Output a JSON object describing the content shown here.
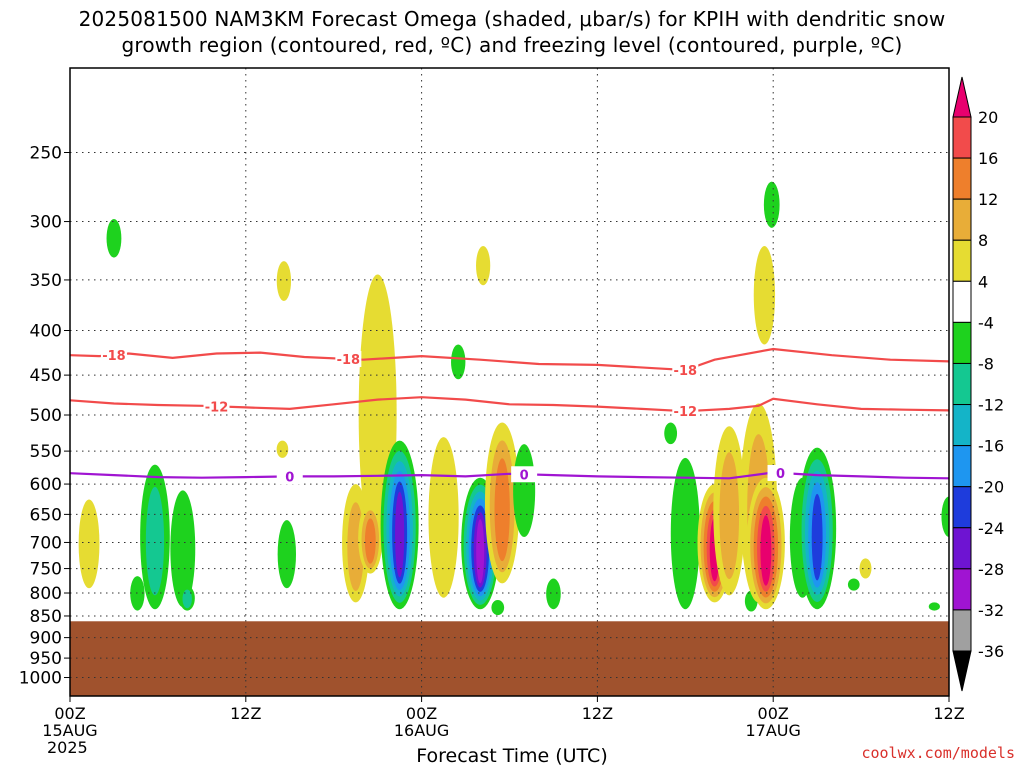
{
  "title_line1": "2025081500 NAM3KM Forecast Omega (shaded, μbar/s) for KPIH with dendritic snow",
  "title_line2": "growth region (contoured, red, ºC) and freezing level (contoured, purple, ºC)",
  "credit": "coolwx.com/models",
  "chart_data": {
    "type": "heatmap",
    "title": "2025081500 NAM3KM Forecast Omega (shaded, μbar/s) for KPIH with dendritic snow growth region (contoured, red, ºC) and freezing level (contoured, purple, ºC)",
    "xlabel": "Forecast Time (UTC)",
    "ylabel": "",
    "x_unit": "forecast hour",
    "xlim": [
      0,
      60
    ],
    "ylim_hPa": [
      1050,
      200
    ],
    "y_scale": "log-pressure",
    "x_ticks": [
      {
        "hour": 0,
        "label": "00Z",
        "date": "15AUG",
        "year": "2025"
      },
      {
        "hour": 12,
        "label": "12Z"
      },
      {
        "hour": 24,
        "label": "00Z",
        "date": "16AUG"
      },
      {
        "hour": 36,
        "label": "12Z"
      },
      {
        "hour": 48,
        "label": "00Z",
        "date": "17AUG"
      },
      {
        "hour": 60,
        "label": "12Z"
      }
    ],
    "y_ticks": [
      250,
      300,
      350,
      400,
      450,
      500,
      550,
      600,
      650,
      700,
      750,
      800,
      850,
      900,
      950,
      1000
    ],
    "grid": true,
    "colorbar": {
      "ticks": [
        20,
        16,
        12,
        8,
        4,
        -4,
        -8,
        -12,
        -16,
        -20,
        -24,
        -28,
        -32,
        -36
      ],
      "bands": [
        {
          "from": 20,
          "to": null,
          "color": "#e8006e"
        },
        {
          "from": 16,
          "to": 20,
          "color": "#f24b4b"
        },
        {
          "from": 12,
          "to": 16,
          "color": "#ee7f2c"
        },
        {
          "from": 8,
          "to": 12,
          "color": "#e8ad38"
        },
        {
          "from": 4,
          "to": 8,
          "color": "#e6dc32"
        },
        {
          "from": -4,
          "to": 4,
          "color": "#ffffff"
        },
        {
          "from": -8,
          "to": -4,
          "color": "#1ed21e"
        },
        {
          "from": -12,
          "to": -8,
          "color": "#14c891"
        },
        {
          "from": -16,
          "to": -12,
          "color": "#14b4c8"
        },
        {
          "from": -20,
          "to": -16,
          "color": "#1e96f0"
        },
        {
          "from": -24,
          "to": -20,
          "color": "#1e3cdc"
        },
        {
          "from": -28,
          "to": -24,
          "color": "#6e14d2"
        },
        {
          "from": -32,
          "to": -28,
          "color": "#a014d2"
        },
        {
          "from": -36,
          "to": -32,
          "color": "#a0a0a0"
        },
        {
          "from": null,
          "to": -36,
          "color": "#000000"
        }
      ]
    },
    "terrain": {
      "surface_hPa": 862,
      "color": "#a0522d"
    },
    "contours": [
      {
        "name": "-18",
        "color": "#f24b4b",
        "labels_at_hours": [
          3,
          19,
          42
        ],
        "points": [
          [
            0,
            427
          ],
          [
            2,
            428
          ],
          [
            4,
            425
          ],
          [
            7,
            430
          ],
          [
            10,
            425
          ],
          [
            13,
            424
          ],
          [
            16,
            429
          ],
          [
            20,
            432
          ],
          [
            24,
            428
          ],
          [
            28,
            432
          ],
          [
            32,
            437
          ],
          [
            36,
            438
          ],
          [
            40,
            442
          ],
          [
            42,
            444
          ],
          [
            44,
            432
          ],
          [
            48,
            420
          ],
          [
            52,
            427
          ],
          [
            56,
            432
          ],
          [
            60,
            434
          ]
        ]
      },
      {
        "name": "-12",
        "color": "#f24b4b",
        "labels_at_hours": [
          10,
          42
        ],
        "points": [
          [
            0,
            481
          ],
          [
            3,
            485
          ],
          [
            6,
            487
          ],
          [
            9,
            488
          ],
          [
            12,
            490
          ],
          [
            15,
            492
          ],
          [
            18,
            486
          ],
          [
            21,
            480
          ],
          [
            24,
            477
          ],
          [
            27,
            480
          ],
          [
            30,
            486
          ],
          [
            33,
            487
          ],
          [
            36,
            489
          ],
          [
            39,
            492
          ],
          [
            42,
            495
          ],
          [
            45,
            492
          ],
          [
            47,
            488
          ],
          [
            48,
            479
          ],
          [
            51,
            486
          ],
          [
            54,
            492
          ],
          [
            57,
            493
          ],
          [
            60,
            494
          ]
        ]
      },
      {
        "name": "0",
        "color": "#a014d2",
        "labels_at_hours": [
          15,
          31,
          48.5
        ],
        "points": [
          [
            0,
            583
          ],
          [
            3,
            586
          ],
          [
            6,
            589
          ],
          [
            9,
            590
          ],
          [
            12,
            589
          ],
          [
            15,
            588
          ],
          [
            18,
            588
          ],
          [
            21,
            587
          ],
          [
            24,
            586
          ],
          [
            27,
            588
          ],
          [
            30,
            584
          ],
          [
            33,
            586
          ],
          [
            36,
            588
          ],
          [
            39,
            589
          ],
          [
            42,
            590
          ],
          [
            45,
            591
          ],
          [
            48,
            582
          ],
          [
            51,
            586
          ],
          [
            54,
            588
          ],
          [
            57,
            590
          ],
          [
            60,
            591
          ]
        ]
      }
    ],
    "omega_cells": [
      {
        "hour": 1.3,
        "top": 625,
        "bottom": 790,
        "peak": 6
      },
      {
        "hour": 3.0,
        "top": 298,
        "bottom": 330,
        "peak": -6
      },
      {
        "hour": 4.6,
        "top": 765,
        "bottom": 838,
        "peak": -6
      },
      {
        "hour": 5.8,
        "top": 570,
        "bottom": 835,
        "peak": -9
      },
      {
        "hour": 7.7,
        "top": 610,
        "bottom": 830,
        "peak": -7
      },
      {
        "hour": 8.0,
        "top": 785,
        "bottom": 838,
        "peak": -9
      },
      {
        "hour": 14.6,
        "top": 333,
        "bottom": 370,
        "peak": 5
      },
      {
        "hour": 14.5,
        "top": 535,
        "bottom": 560,
        "peak": 5
      },
      {
        "hour": 14.8,
        "top": 660,
        "bottom": 790,
        "peak": -6
      },
      {
        "hour": 19.5,
        "top": 600,
        "bottom": 820,
        "peak": 10
      },
      {
        "hour": 21.0,
        "top": 345,
        "bottom": 720,
        "peak": 6
      },
      {
        "hour": 20.5,
        "top": 630,
        "bottom": 760,
        "peak": 14
      },
      {
        "hour": 22.5,
        "top": 535,
        "bottom": 835,
        "peak": -26
      },
      {
        "hour": 25.5,
        "top": 530,
        "bottom": 810,
        "peak": 7
      },
      {
        "hour": 26.5,
        "top": 415,
        "bottom": 455,
        "peak": -6
      },
      {
        "hour": 28.2,
        "top": 320,
        "bottom": 355,
        "peak": 5
      },
      {
        "hour": 28.0,
        "top": 590,
        "bottom": 835,
        "peak": -30
      },
      {
        "hour": 29.5,
        "top": 510,
        "bottom": 780,
        "peak": 13
      },
      {
        "hour": 29.2,
        "top": 815,
        "bottom": 848,
        "peak": -7
      },
      {
        "hour": 31.0,
        "top": 540,
        "bottom": 690,
        "peak": -7
      },
      {
        "hour": 33.0,
        "top": 770,
        "bottom": 835,
        "peak": -7
      },
      {
        "hour": 41.0,
        "top": 510,
        "bottom": 540,
        "peak": -6
      },
      {
        "hour": 42.0,
        "top": 560,
        "bottom": 835,
        "peak": -7
      },
      {
        "hour": 44.0,
        "top": 600,
        "bottom": 820,
        "peak": 20
      },
      {
        "hour": 45.0,
        "top": 515,
        "bottom": 805,
        "peak": 8
      },
      {
        "hour": 46.5,
        "top": 795,
        "bottom": 840,
        "peak": -6
      },
      {
        "hour": 47.0,
        "top": 485,
        "bottom": 820,
        "peak": 10
      },
      {
        "hour": 47.5,
        "top": 590,
        "bottom": 835,
        "peak": 24
      },
      {
        "hour": 47.4,
        "top": 320,
        "bottom": 415,
        "peak": 5
      },
      {
        "hour": 47.9,
        "top": 270,
        "bottom": 305,
        "peak": -6
      },
      {
        "hour": 50.0,
        "top": 590,
        "bottom": 810,
        "peak": -7
      },
      {
        "hour": 51.0,
        "top": 545,
        "bottom": 835,
        "peak": -22
      },
      {
        "hour": 53.5,
        "top": 770,
        "bottom": 795,
        "peak": -6
      },
      {
        "hour": 54.3,
        "top": 730,
        "bottom": 770,
        "peak": 5
      },
      {
        "hour": 59.0,
        "top": 820,
        "bottom": 838,
        "peak": -6
      },
      {
        "hour": 60.0,
        "top": 620,
        "bottom": 690,
        "peak": -6
      }
    ]
  }
}
